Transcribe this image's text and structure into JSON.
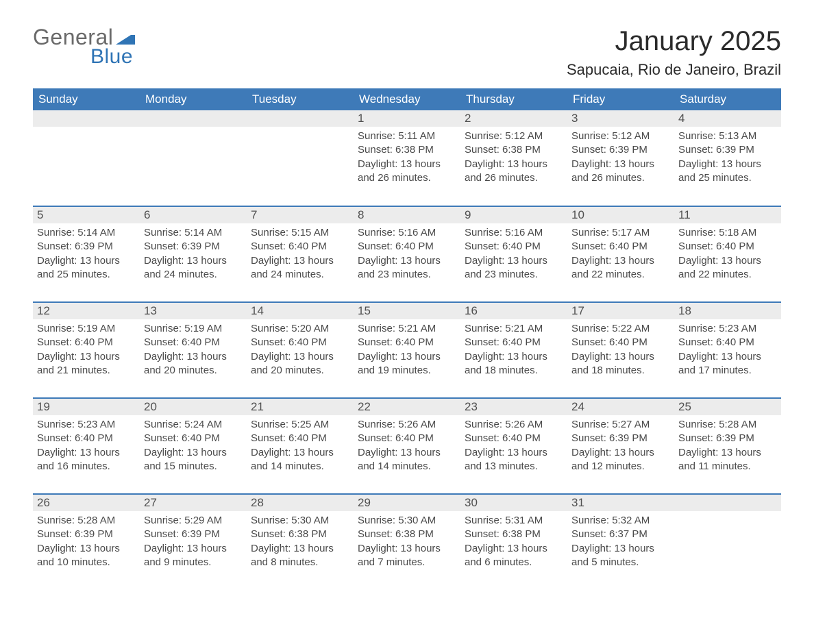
{
  "brand": {
    "part1": "General",
    "part2": "Blue"
  },
  "title": "January 2025",
  "subtitle": "Sapucaia, Rio de Janeiro, Brazil",
  "colors": {
    "header_bg": "#3e7ab8",
    "week_border": "#3e7ab8",
    "daynum_bg": "#ececec",
    "page_bg": "#ffffff",
    "logo_gray": "#6a6a6a",
    "logo_blue": "#2f74b5"
  },
  "dayHeaders": [
    "Sunday",
    "Monday",
    "Tuesday",
    "Wednesday",
    "Thursday",
    "Friday",
    "Saturday"
  ],
  "weeks": [
    [
      null,
      null,
      null,
      {
        "n": "1",
        "sr": "Sunrise: 5:11 AM",
        "ss": "Sunset: 6:38 PM",
        "dl": "Daylight: 13 hours and 26 minutes."
      },
      {
        "n": "2",
        "sr": "Sunrise: 5:12 AM",
        "ss": "Sunset: 6:38 PM",
        "dl": "Daylight: 13 hours and 26 minutes."
      },
      {
        "n": "3",
        "sr": "Sunrise: 5:12 AM",
        "ss": "Sunset: 6:39 PM",
        "dl": "Daylight: 13 hours and 26 minutes."
      },
      {
        "n": "4",
        "sr": "Sunrise: 5:13 AM",
        "ss": "Sunset: 6:39 PM",
        "dl": "Daylight: 13 hours and 25 minutes."
      }
    ],
    [
      {
        "n": "5",
        "sr": "Sunrise: 5:14 AM",
        "ss": "Sunset: 6:39 PM",
        "dl": "Daylight: 13 hours and 25 minutes."
      },
      {
        "n": "6",
        "sr": "Sunrise: 5:14 AM",
        "ss": "Sunset: 6:39 PM",
        "dl": "Daylight: 13 hours and 24 minutes."
      },
      {
        "n": "7",
        "sr": "Sunrise: 5:15 AM",
        "ss": "Sunset: 6:40 PM",
        "dl": "Daylight: 13 hours and 24 minutes."
      },
      {
        "n": "8",
        "sr": "Sunrise: 5:16 AM",
        "ss": "Sunset: 6:40 PM",
        "dl": "Daylight: 13 hours and 23 minutes."
      },
      {
        "n": "9",
        "sr": "Sunrise: 5:16 AM",
        "ss": "Sunset: 6:40 PM",
        "dl": "Daylight: 13 hours and 23 minutes."
      },
      {
        "n": "10",
        "sr": "Sunrise: 5:17 AM",
        "ss": "Sunset: 6:40 PM",
        "dl": "Daylight: 13 hours and 22 minutes."
      },
      {
        "n": "11",
        "sr": "Sunrise: 5:18 AM",
        "ss": "Sunset: 6:40 PM",
        "dl": "Daylight: 13 hours and 22 minutes."
      }
    ],
    [
      {
        "n": "12",
        "sr": "Sunrise: 5:19 AM",
        "ss": "Sunset: 6:40 PM",
        "dl": "Daylight: 13 hours and 21 minutes."
      },
      {
        "n": "13",
        "sr": "Sunrise: 5:19 AM",
        "ss": "Sunset: 6:40 PM",
        "dl": "Daylight: 13 hours and 20 minutes."
      },
      {
        "n": "14",
        "sr": "Sunrise: 5:20 AM",
        "ss": "Sunset: 6:40 PM",
        "dl": "Daylight: 13 hours and 20 minutes."
      },
      {
        "n": "15",
        "sr": "Sunrise: 5:21 AM",
        "ss": "Sunset: 6:40 PM",
        "dl": "Daylight: 13 hours and 19 minutes."
      },
      {
        "n": "16",
        "sr": "Sunrise: 5:21 AM",
        "ss": "Sunset: 6:40 PM",
        "dl": "Daylight: 13 hours and 18 minutes."
      },
      {
        "n": "17",
        "sr": "Sunrise: 5:22 AM",
        "ss": "Sunset: 6:40 PM",
        "dl": "Daylight: 13 hours and 18 minutes."
      },
      {
        "n": "18",
        "sr": "Sunrise: 5:23 AM",
        "ss": "Sunset: 6:40 PM",
        "dl": "Daylight: 13 hours and 17 minutes."
      }
    ],
    [
      {
        "n": "19",
        "sr": "Sunrise: 5:23 AM",
        "ss": "Sunset: 6:40 PM",
        "dl": "Daylight: 13 hours and 16 minutes."
      },
      {
        "n": "20",
        "sr": "Sunrise: 5:24 AM",
        "ss": "Sunset: 6:40 PM",
        "dl": "Daylight: 13 hours and 15 minutes."
      },
      {
        "n": "21",
        "sr": "Sunrise: 5:25 AM",
        "ss": "Sunset: 6:40 PM",
        "dl": "Daylight: 13 hours and 14 minutes."
      },
      {
        "n": "22",
        "sr": "Sunrise: 5:26 AM",
        "ss": "Sunset: 6:40 PM",
        "dl": "Daylight: 13 hours and 14 minutes."
      },
      {
        "n": "23",
        "sr": "Sunrise: 5:26 AM",
        "ss": "Sunset: 6:40 PM",
        "dl": "Daylight: 13 hours and 13 minutes."
      },
      {
        "n": "24",
        "sr": "Sunrise: 5:27 AM",
        "ss": "Sunset: 6:39 PM",
        "dl": "Daylight: 13 hours and 12 minutes."
      },
      {
        "n": "25",
        "sr": "Sunrise: 5:28 AM",
        "ss": "Sunset: 6:39 PM",
        "dl": "Daylight: 13 hours and 11 minutes."
      }
    ],
    [
      {
        "n": "26",
        "sr": "Sunrise: 5:28 AM",
        "ss": "Sunset: 6:39 PM",
        "dl": "Daylight: 13 hours and 10 minutes."
      },
      {
        "n": "27",
        "sr": "Sunrise: 5:29 AM",
        "ss": "Sunset: 6:39 PM",
        "dl": "Daylight: 13 hours and 9 minutes."
      },
      {
        "n": "28",
        "sr": "Sunrise: 5:30 AM",
        "ss": "Sunset: 6:38 PM",
        "dl": "Daylight: 13 hours and 8 minutes."
      },
      {
        "n": "29",
        "sr": "Sunrise: 5:30 AM",
        "ss": "Sunset: 6:38 PM",
        "dl": "Daylight: 13 hours and 7 minutes."
      },
      {
        "n": "30",
        "sr": "Sunrise: 5:31 AM",
        "ss": "Sunset: 6:38 PM",
        "dl": "Daylight: 13 hours and 6 minutes."
      },
      {
        "n": "31",
        "sr": "Sunrise: 5:32 AM",
        "ss": "Sunset: 6:37 PM",
        "dl": "Daylight: 13 hours and 5 minutes."
      },
      null
    ]
  ]
}
